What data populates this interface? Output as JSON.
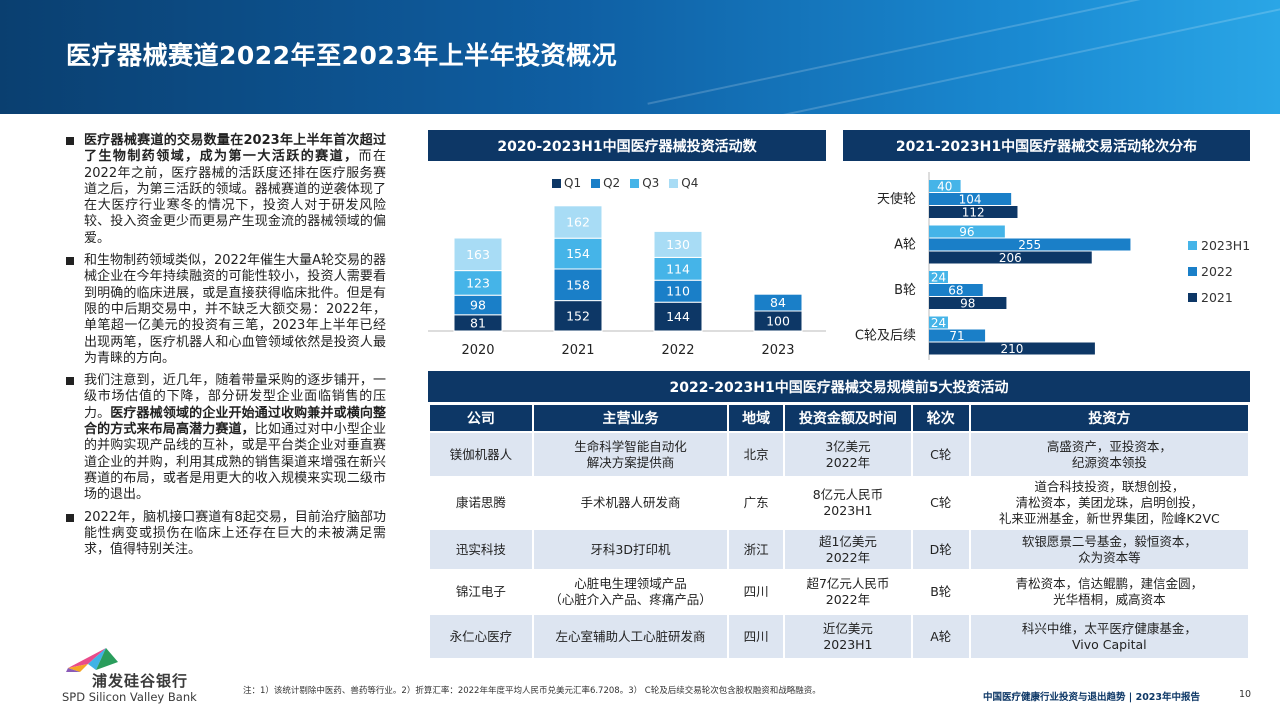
{
  "header": {
    "title": "医疗器械赛道2022年至2023年上半年投资概况"
  },
  "paragraphs": [
    {
      "segments": [
        {
          "b": true,
          "t": "医疗器械赛道的交易数量在2023年上半年首次超过了生物制药领域，成为第一大活跃的赛道，"
        },
        {
          "b": false,
          "t": "而在2022年之前，医疗器械的活跃度还排在医疗服务赛道之后，为第三活跃的领域。器械赛道的逆袭体现了在大医疗行业寒冬的情况下，投资人对于研发风险较、投入资金更少而更易产生现金流的器械领域的偏爱。"
        }
      ]
    },
    {
      "segments": [
        {
          "b": false,
          "t": "和生物制药领域类似，2022年催生大量A轮交易的器械企业在今年持续融资的可能性较小，投资人需要看到明确的临床进展，或是直接获得临床批件。但是有限的中后期交易中，并不缺乏大额交易：2022年，单笔超一亿美元的投资有三笔，2023年上半年已经出现两笔，医疗机器人和心血管领域依然是投资人最为青睐的方向。"
        }
      ]
    },
    {
      "segments": [
        {
          "b": false,
          "t": "我们注意到，近几年，随着带量采购的逐步铺开，一级市场估值的下降，部分研发型企业面临销售的压力。"
        },
        {
          "b": true,
          "t": "医疗器械领域的企业开始通过收购兼并或横向整合的方式来布局高潜力赛道，"
        },
        {
          "b": false,
          "t": "比如通过对中小型企业的并购实现产品线的互补，或是平台类企业对垂直赛道企业的并购，利用其成熟的销售渠道来增强在新兴赛道的布局，或者是用更大的收入规模来实现二级市场的退出。"
        }
      ]
    },
    {
      "segments": [
        {
          "b": false,
          "t": "2022年，脑机接口赛道有8起交易，目前治疗脑部功能性病变或损伤在临床上还存在巨大的未被满足需求，值得特别关注。"
        }
      ]
    }
  ],
  "chart1_title": "2020-2023H1中国医疗器械投资活动数",
  "chart2_title": "2021-2023H1中国医疗器械交易活动轮次分布",
  "table_title": "2022-2023H1中国医疗器械交易规模前5大投资活动",
  "colors": {
    "navy": "#0d3766",
    "blue": "#1a7fc8",
    "sky": "#45b4e8",
    "pale": "#a8dcf5"
  },
  "chart_data": [
    {
      "type": "bar",
      "stacked": true,
      "title": "2020-2023H1中国医疗器械投资活动数",
      "categories": [
        "2020",
        "2021",
        "2022",
        "2023"
      ],
      "series": [
        {
          "name": "Q1",
          "color": "#0d3766",
          "values": [
            81,
            152,
            144,
            100
          ]
        },
        {
          "name": "Q2",
          "color": "#1a7fc8",
          "values": [
            98,
            158,
            110,
            84
          ]
        },
        {
          "name": "Q3",
          "color": "#45b4e8",
          "values": [
            123,
            154,
            114,
            null
          ]
        },
        {
          "name": "Q4",
          "color": "#a8dcf5",
          "values": [
            163,
            162,
            130,
            null
          ]
        }
      ],
      "legend": "top"
    },
    {
      "type": "bar",
      "orientation": "horizontal",
      "title": "2021-2023H1中国医疗器械交易活动轮次分布",
      "categories": [
        "天使轮",
        "A轮",
        "B轮",
        "C轮及后续"
      ],
      "series": [
        {
          "name": "2023H1",
          "color": "#45b4e8",
          "values": [
            40,
            96,
            24,
            24
          ]
        },
        {
          "name": "2022",
          "color": "#1a7fc8",
          "values": [
            104,
            255,
            68,
            71
          ]
        },
        {
          "name": "2021",
          "color": "#0d3766",
          "values": [
            112,
            206,
            98,
            210
          ]
        }
      ],
      "legend": "right"
    }
  ],
  "table": {
    "headers": [
      "公司",
      "主营业务",
      "地域",
      "投资金额及时间",
      "轮次",
      "投资方"
    ],
    "rows": [
      [
        "镁伽机器人",
        "生命科学智能自动化\n解决方案提供商",
        "北京",
        "3亿美元\n2022年",
        "C轮",
        "高盛资产，亚投资本，\n纪源资本领投"
      ],
      [
        "康诺思腾",
        "手术机器人研发商",
        "广东",
        "8亿元人民币\n2023H1",
        "C轮",
        "道合科技投资，联想创投，\n清松资本，美团龙珠，启明创投，\n礼来亚洲基金，新世界集团，险峰K2VC"
      ],
      [
        "迅实科技",
        "牙科3D打印机",
        "浙江",
        "超1亿美元\n2022年",
        "D轮",
        "软银愿景二号基金，毅恒资本，\n众为资本等"
      ],
      [
        "锦江电子",
        "心脏电生理领域产品\n（心脏介入产品、疼痛产品）",
        "四川",
        "超7亿元人民币\n2022年",
        "B轮",
        "青松资本，信达鲲鹏，建信金圆，\n光华梧桐，威高资本"
      ],
      [
        "永仁心医疗",
        "左心室辅助人工心脏研发商",
        "四川",
        "近亿美元\n2023H1",
        "A轮",
        "科兴中维，太平医疗健康基金，\nVivo Capital"
      ]
    ]
  },
  "footer": {
    "logo_cn": "浦发硅谷银行",
    "logo_en": "SPD Silicon Valley Bank",
    "note": "注：1）该统计剔除中医药、兽药等行业。2）折算汇率：2022年年度平均人民币兑美元汇率6.7208。3） C轮及后续交易轮次包含股权融资和战略融资。",
    "report": "中国医疗健康行业投资与退出趋势 | 2023年中报告",
    "page": "10"
  }
}
